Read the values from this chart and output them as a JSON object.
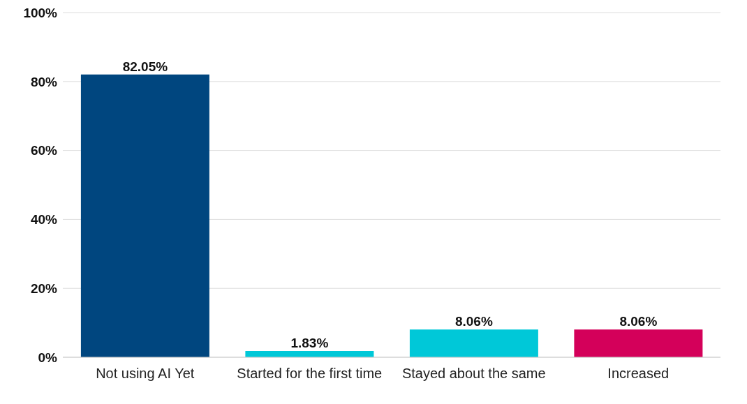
{
  "chart_data": {
    "type": "bar",
    "categories": [
      "Not using AI Yet",
      "Started for the first time",
      "Stayed about the same",
      "Increased"
    ],
    "values": [
      82.05,
      1.83,
      8.06,
      8.06
    ],
    "colors": [
      "#00467f",
      "#00c8d8",
      "#00c8d8",
      "#d4005a"
    ],
    "value_labels": [
      "82.05%",
      "1.83%",
      "8.06%",
      "8.06%"
    ],
    "ylim": [
      0,
      100
    ],
    "yticks": [
      {
        "value": 0,
        "label": "0%"
      },
      {
        "value": 20,
        "label": "20%"
      },
      {
        "value": 40,
        "label": "40%"
      },
      {
        "value": 60,
        "label": "60%"
      },
      {
        "value": 80,
        "label": "80%"
      },
      {
        "value": 100,
        "label": "100%"
      }
    ],
    "grid": "y",
    "legend": false
  }
}
